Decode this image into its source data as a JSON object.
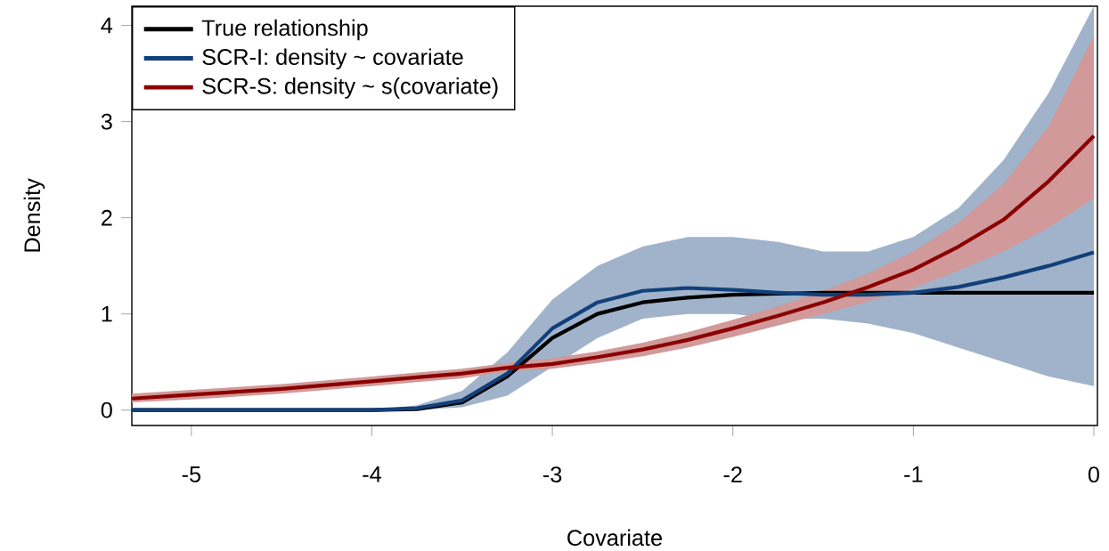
{
  "chart_data": {
    "type": "line",
    "xlabel": "Covariate",
    "ylabel": "Density",
    "x": [
      -5.33,
      -5,
      -4.5,
      -4,
      -3.75,
      -3.5,
      -3.25,
      -3,
      -2.75,
      -2.5,
      -2.25,
      -2,
      -1.75,
      -1.5,
      -1.25,
      -1,
      -0.75,
      -0.5,
      -0.25,
      0
    ],
    "series": [
      {
        "name": "True relationship",
        "color": "#000000",
        "values": [
          0,
          0,
          0,
          0,
          0.01,
          0.08,
          0.35,
          0.75,
          1.0,
          1.12,
          1.17,
          1.2,
          1.21,
          1.22,
          1.22,
          1.22,
          1.22,
          1.22,
          1.22,
          1.22
        ]
      },
      {
        "name": "SCR-I: density ~ covariate",
        "color": "#12407a",
        "values": [
          0,
          0,
          0,
          0,
          0.02,
          0.1,
          0.38,
          0.85,
          1.12,
          1.24,
          1.27,
          1.25,
          1.22,
          1.2,
          1.2,
          1.22,
          1.28,
          1.38,
          1.5,
          1.64
        ],
        "lower": [
          0,
          0,
          0,
          0,
          0,
          0.03,
          0.15,
          0.45,
          0.75,
          0.95,
          1.0,
          1.0,
          0.95,
          0.95,
          0.9,
          0.8,
          0.65,
          0.5,
          0.35,
          0.25
        ],
        "upper": [
          0,
          0,
          0,
          0,
          0.05,
          0.2,
          0.6,
          1.15,
          1.5,
          1.7,
          1.8,
          1.8,
          1.75,
          1.65,
          1.65,
          1.8,
          2.1,
          2.6,
          3.3,
          4.2
        ]
      },
      {
        "name": "SCR-S: density ~ s(covariate)",
        "color": "#8b0000",
        "values": [
          0.12,
          0.16,
          0.22,
          0.3,
          0.34,
          0.38,
          0.44,
          0.48,
          0.55,
          0.63,
          0.73,
          0.85,
          0.98,
          1.12,
          1.28,
          1.46,
          1.7,
          1.98,
          2.38,
          2.85
        ],
        "lower": [
          0.08,
          0.11,
          0.17,
          0.25,
          0.29,
          0.33,
          0.4,
          0.43,
          0.49,
          0.56,
          0.65,
          0.76,
          0.88,
          1.0,
          1.13,
          1.27,
          1.45,
          1.65,
          1.9,
          2.2
        ],
        "upper": [
          0.17,
          0.21,
          0.27,
          0.35,
          0.39,
          0.43,
          0.49,
          0.54,
          0.61,
          0.7,
          0.81,
          0.94,
          1.08,
          1.24,
          1.42,
          1.65,
          1.95,
          2.35,
          2.95,
          3.9
        ]
      }
    ],
    "xlim": [
      -5.33,
      0.02
    ],
    "ylim": [
      -0.16,
      4.2
    ],
    "xticks": [
      -5,
      -4,
      -3,
      -2,
      -1,
      0
    ],
    "yticks": [
      0,
      1,
      2,
      3,
      4
    ],
    "legend": "top left",
    "marker": "none",
    "line_style": "solid"
  }
}
